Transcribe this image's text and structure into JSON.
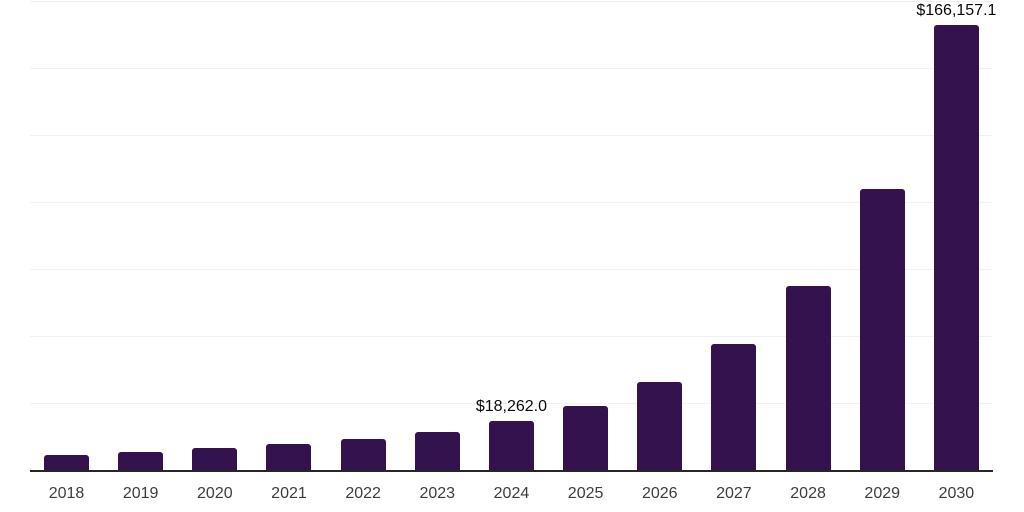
{
  "chart_data": {
    "type": "bar",
    "title": "",
    "xlabel": "",
    "ylabel": "",
    "categories": [
      "2018",
      "2019",
      "2020",
      "2021",
      "2022",
      "2023",
      "2024",
      "2025",
      "2026",
      "2027",
      "2028",
      "2029",
      "2030"
    ],
    "values": [
      5700,
      6900,
      8100,
      9600,
      11400,
      14200,
      18262.0,
      23800,
      32900,
      46900,
      68800,
      104800,
      166157.1
    ],
    "value_labels": {
      "2024": "$18,262.0",
      "2030": "$166,157.1"
    },
    "ylim": [
      0,
      175000
    ],
    "gridline_interval": 25000,
    "grid": true,
    "legend": false,
    "colors": {
      "bar": "#33124E",
      "gridline": "#F1F1F1",
      "axis_line": "#262626",
      "tick_label": "#3D3D3D",
      "data_label": "#0A0A0A",
      "background": "#FFFFFF"
    }
  }
}
